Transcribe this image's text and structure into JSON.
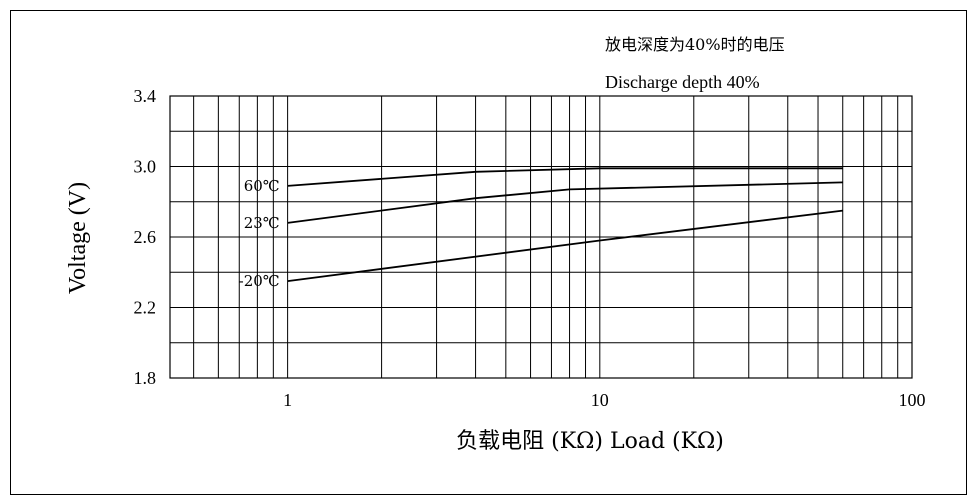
{
  "chart_data": {
    "type": "line",
    "title_cn": "放电深度为40%时的电压",
    "title": "Discharge depth 40%",
    "xlabel": "负载电阻 (KΩ) Load (KΩ)",
    "ylabel": "Voltage (V)",
    "x_scale": "log",
    "xlim": [
      0.42,
      100
    ],
    "ylim": [
      1.8,
      3.4
    ],
    "x_ticks": [
      1,
      10,
      100
    ],
    "x_tick_labels": [
      "1",
      "10",
      "100"
    ],
    "y_ticks": [
      1.8,
      2.2,
      2.6,
      3.0,
      3.4
    ],
    "y_tick_labels": [
      "1.8",
      "2.2",
      "2.6",
      "3.0",
      "3.4"
    ],
    "y_grid_step": 0.2,
    "grid": true,
    "series": [
      {
        "name": "60℃",
        "x": [
          1,
          4,
          10,
          60
        ],
        "y": [
          2.89,
          2.97,
          2.99,
          2.99
        ]
      },
      {
        "name": "23℃",
        "x": [
          1,
          4,
          8,
          60
        ],
        "y": [
          2.68,
          2.82,
          2.87,
          2.91
        ]
      },
      {
        "name": "-20℃",
        "x": [
          1,
          10,
          60
        ],
        "y": [
          2.35,
          2.58,
          2.75
        ]
      }
    ]
  }
}
